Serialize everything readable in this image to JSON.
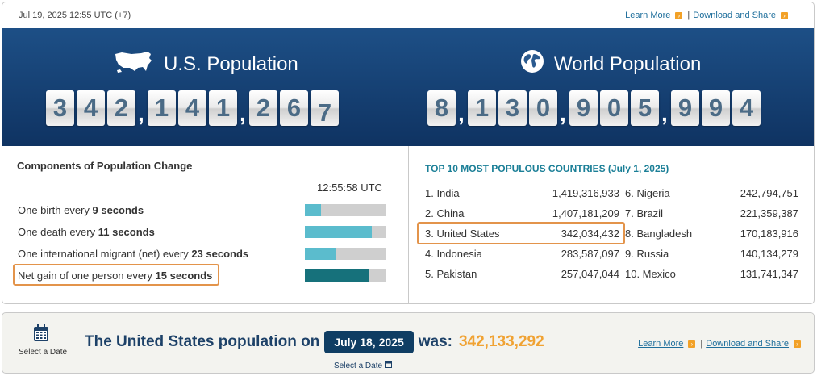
{
  "header": {
    "timestamp": "Jul 19, 2025 12:55 UTC (+7)",
    "learn_more": "Learn More",
    "separator": "|",
    "download_share": "Download and Share"
  },
  "us_population": {
    "title": "U.S. Population",
    "digits": [
      "3",
      "4",
      "2",
      ",",
      "1",
      "4",
      "1",
      ",",
      "2",
      "6",
      "7"
    ]
  },
  "world_population": {
    "title": "World Population",
    "digits": [
      "8",
      ",",
      "1",
      "3",
      "0",
      ",",
      "9",
      "0",
      "5",
      ",",
      "9",
      "9",
      "4"
    ]
  },
  "components": {
    "title": "Components of Population Change",
    "time": "12:55:58 UTC",
    "rows": [
      {
        "prefix": "One birth every ",
        "value": "9 seconds",
        "progress": 0.2
      },
      {
        "prefix": "One death every ",
        "value": "11 seconds",
        "progress": 0.83
      },
      {
        "prefix": "One international migrant (net) every ",
        "value": "23 seconds",
        "progress": 0.38
      },
      {
        "prefix": "Net gain of one person every ",
        "value": "15 seconds",
        "progress": 0.79
      }
    ]
  },
  "top10": {
    "title": "TOP 10 MOST POPULOUS COUNTRIES (July 1, 2025)",
    "countries": [
      {
        "name": "1. India",
        "value": "1,419,316,933"
      },
      {
        "name": "2. China",
        "value": "1,407,181,209"
      },
      {
        "name": "3. United States",
        "value": "342,034,432"
      },
      {
        "name": "4. Indonesia",
        "value": "283,587,097"
      },
      {
        "name": "5. Pakistan",
        "value": "257,047,044"
      },
      {
        "name": "6. Nigeria",
        "value": "242,794,751"
      },
      {
        "name": "7. Brazil",
        "value": "221,359,387"
      },
      {
        "name": "8. Bangladesh",
        "value": "170,183,916"
      },
      {
        "name": "9. Russia",
        "value": "140,134,279"
      },
      {
        "name": "10. Mexico",
        "value": "131,741,347"
      }
    ]
  },
  "bottom": {
    "select_date_label": "Select a Date",
    "sentence_prefix": "The United States population on",
    "date": "July 18, 2025",
    "was": "was:",
    "value": "342,133,292",
    "pill_sub": "Select a Date",
    "learn_more": "Learn More",
    "separator": "|",
    "download_share": "Download and Share"
  },
  "colors": {
    "banner": "#1d4f86",
    "accent_orange": "#f0a233",
    "highlight_border": "#e3944b",
    "bar_fill": "#5bbccd",
    "bar_fill_net": "#16717b",
    "link": "#1f6f9c"
  },
  "icons": {
    "us_map": "us-map-icon",
    "globe": "globe-icon",
    "calendar": "calendar-icon",
    "arrow": "arrow-right-icon"
  }
}
